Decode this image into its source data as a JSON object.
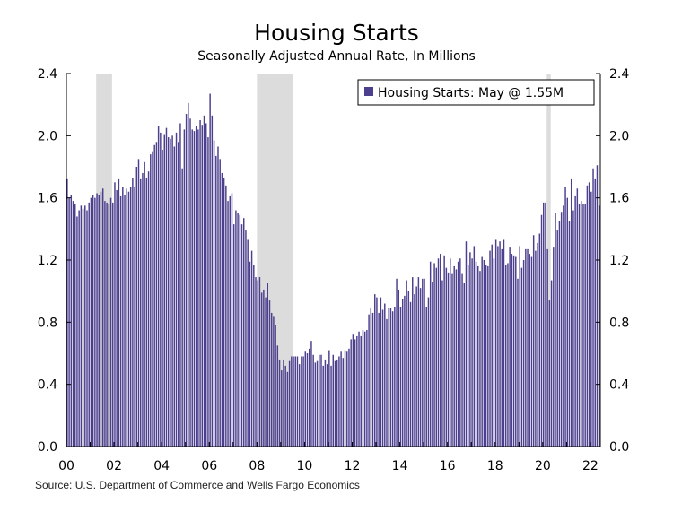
{
  "chart_data": {
    "type": "bar",
    "title": "Housing Starts",
    "subtitle": "Seasonally Adjusted Annual Rate, In Millions",
    "source": "Source: U.S. Department of Commerce and Wells Fargo Economics",
    "legend": {
      "label": "Housing Starts: May @ 1.55M",
      "placement": "top-right"
    },
    "x_start": "2000-01",
    "x_end": "2022-05",
    "x_tick_labels": [
      "00",
      "02",
      "04",
      "06",
      "08",
      "10",
      "12",
      "14",
      "16",
      "18",
      "20",
      "22"
    ],
    "y_tick_labels": [
      "0.0",
      "0.4",
      "0.8",
      "1.2",
      "1.6",
      "2.0",
      "2.4"
    ],
    "ylim": [
      0,
      2.4
    ],
    "grid": false,
    "bar_color": "#4b3f8e",
    "recession_color": "#dcdcdc",
    "recessions": [
      [
        "2001-04",
        "2001-11"
      ],
      [
        "2008-01",
        "2009-06"
      ],
      [
        "2020-03",
        "2020-04"
      ]
    ],
    "values": [
      1.72,
      1.6,
      1.62,
      1.58,
      1.56,
      1.48,
      1.52,
      1.55,
      1.53,
      1.55,
      1.52,
      1.57,
      1.6,
      1.62,
      1.6,
      1.63,
      1.62,
      1.64,
      1.66,
      1.58,
      1.57,
      1.56,
      1.6,
      1.57,
      1.7,
      1.65,
      1.72,
      1.61,
      1.67,
      1.62,
      1.66,
      1.64,
      1.67,
      1.73,
      1.67,
      1.8,
      1.85,
      1.72,
      1.76,
      1.83,
      1.73,
      1.77,
      1.88,
      1.9,
      1.94,
      1.96,
      2.06,
      2.02,
      1.91,
      2.01,
      2.05,
      1.99,
      1.98,
      2.0,
      1.93,
      2.02,
      1.96,
      2.08,
      1.79,
      2.04,
      2.14,
      2.21,
      2.11,
      2.04,
      2.03,
      2.06,
      2.04,
      2.1,
      2.07,
      2.13,
      2.08,
      1.99,
      2.27,
      2.13,
      1.97,
      1.87,
      1.93,
      1.85,
      1.76,
      1.73,
      1.68,
      1.58,
      1.61,
      1.63,
      1.43,
      1.52,
      1.5,
      1.49,
      1.43,
      1.47,
      1.39,
      1.33,
      1.19,
      1.26,
      1.17,
      1.09,
      1.07,
      1.09,
      0.99,
      1.01,
      0.96,
      1.05,
      0.94,
      0.86,
      0.84,
      0.78,
      0.65,
      0.56,
      0.49,
      0.56,
      0.52,
      0.48,
      0.55,
      0.58,
      0.58,
      0.58,
      0.58,
      0.53,
      0.58,
      0.58,
      0.61,
      0.6,
      0.63,
      0.68,
      0.59,
      0.54,
      0.55,
      0.59,
      0.59,
      0.52,
      0.56,
      0.53,
      0.62,
      0.52,
      0.59,
      0.55,
      0.56,
      0.58,
      0.61,
      0.57,
      0.62,
      0.61,
      0.63,
      0.69,
      0.72,
      0.69,
      0.71,
      0.74,
      0.71,
      0.75,
      0.74,
      0.75,
      0.85,
      0.89,
      0.86,
      0.98,
      0.96,
      0.86,
      0.96,
      0.88,
      0.92,
      0.82,
      0.89,
      0.89,
      0.87,
      0.9,
      1.08,
      1.01,
      0.9,
      0.95,
      0.97,
      1.07,
      1.0,
      0.93,
      1.09,
      0.98,
      1.03,
      1.09,
      1.02,
      1.08,
      1.08,
      0.9,
      0.96,
      1.19,
      1.06,
      1.18,
      1.15,
      1.21,
      1.24,
      1.07,
      1.23,
      1.15,
      1.12,
      1.21,
      1.11,
      1.16,
      1.14,
      1.19,
      1.21,
      1.11,
      1.05,
      1.32,
      1.17,
      1.25,
      1.21,
      1.29,
      1.19,
      1.16,
      1.13,
      1.22,
      1.2,
      1.17,
      1.16,
      1.26,
      1.3,
      1.21,
      1.33,
      1.29,
      1.32,
      1.27,
      1.33,
      1.17,
      1.18,
      1.28,
      1.24,
      1.23,
      1.22,
      1.08,
      1.29,
      1.15,
      1.2,
      1.27,
      1.27,
      1.24,
      1.22,
      1.36,
      1.26,
      1.31,
      1.37,
      1.49,
      1.57,
      1.57,
      1.27,
      0.94,
      1.07,
      1.28,
      1.5,
      1.39,
      1.45,
      1.51,
      1.55,
      1.67,
      1.6,
      1.45,
      1.72,
      1.52,
      1.61,
      1.66,
      1.56,
      1.58,
      1.56,
      1.56,
      1.68,
      1.7,
      1.64,
      1.79,
      1.72,
      1.81,
      1.55
    ]
  }
}
